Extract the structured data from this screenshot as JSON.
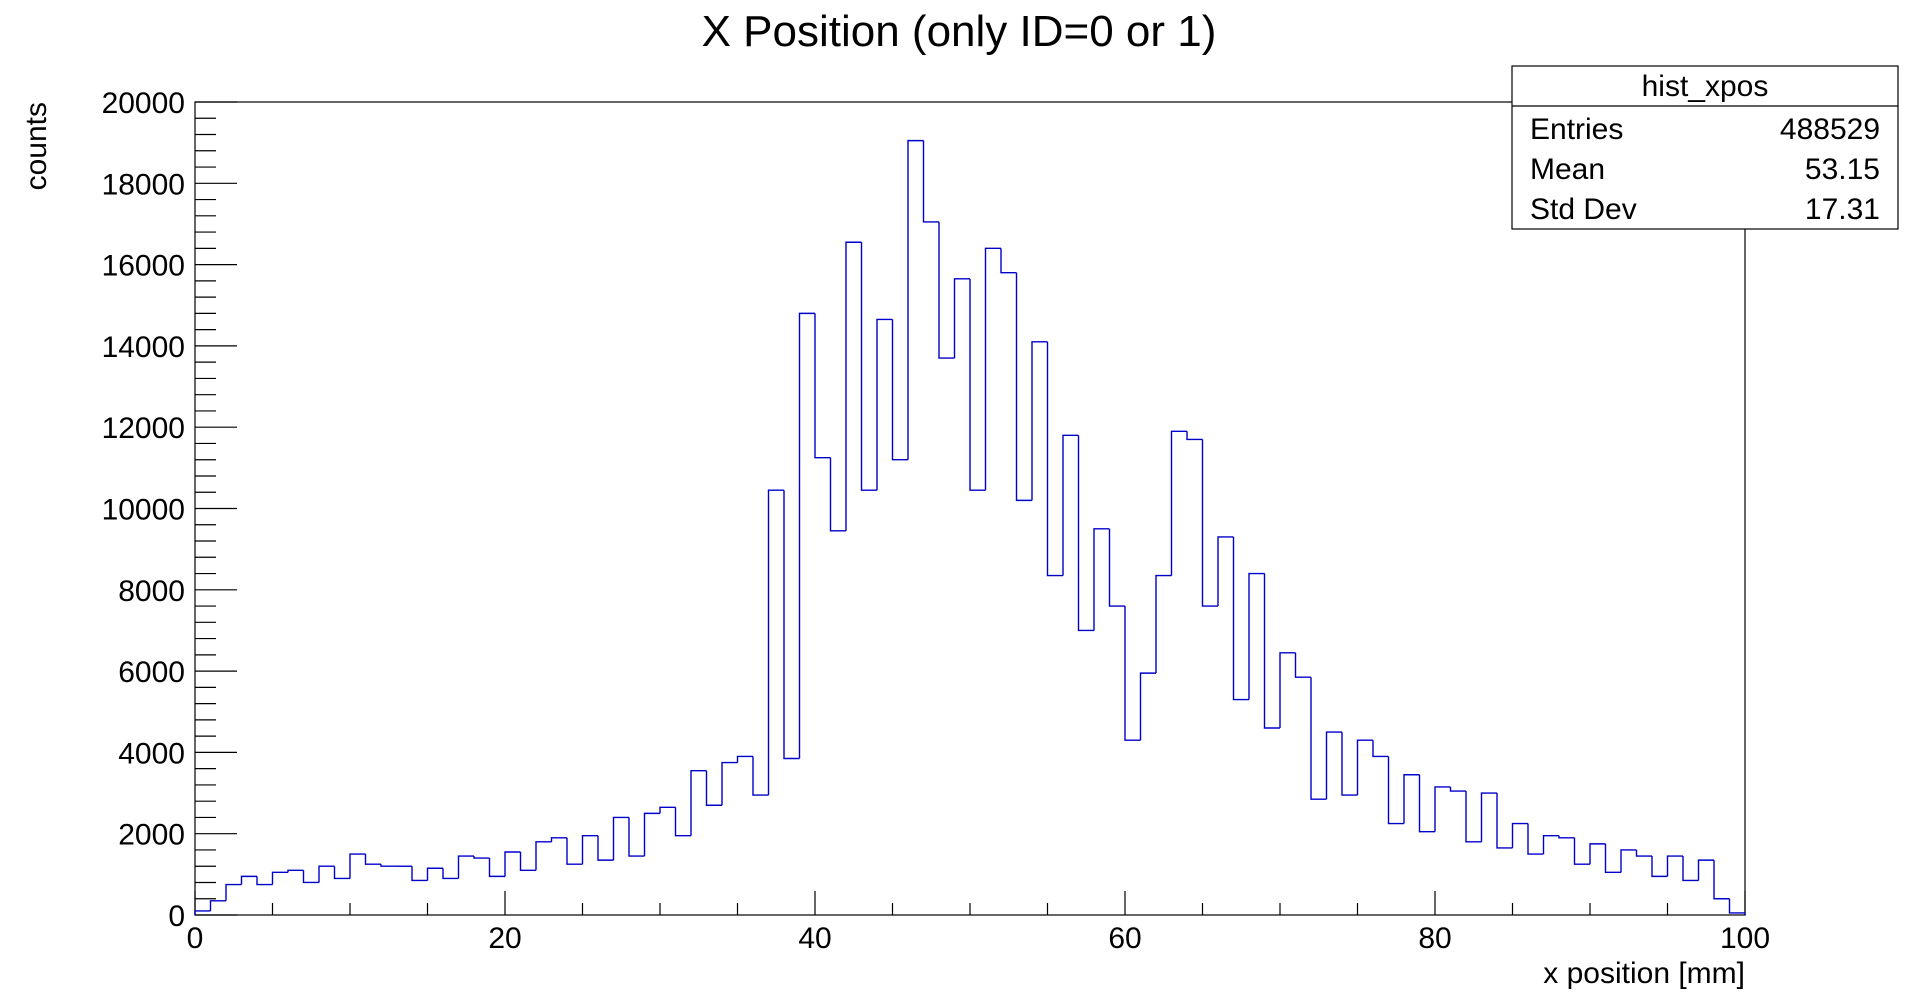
{
  "chart_data": {
    "type": "bar",
    "histogram": true,
    "title": "X Position (only ID=0 or 1)",
    "xlabel": "x position [mm]",
    "ylabel": "counts",
    "xlim": [
      0,
      100
    ],
    "ylim": [
      0,
      20000
    ],
    "x_ticks": [
      0,
      20,
      40,
      60,
      80,
      100
    ],
    "y_ticks": [
      0,
      2000,
      4000,
      6000,
      8000,
      10000,
      12000,
      14000,
      16000,
      18000,
      20000
    ],
    "grid": false,
    "bin_width": 1,
    "series": [
      {
        "color": "#0000cc",
        "values": [
          100,
          350,
          750,
          950,
          750,
          1050,
          1100,
          800,
          1200,
          900,
          1500,
          1250,
          1200,
          1200,
          850,
          1150,
          900,
          1450,
          1400,
          950,
          1550,
          1100,
          1800,
          1900,
          1250,
          1950,
          1350,
          2400,
          1450,
          2500,
          2650,
          1950,
          3550,
          2700,
          3750,
          3900,
          2950,
          10450,
          3850,
          14800,
          11250,
          9450,
          16550,
          10450,
          14650,
          11200,
          19050,
          17050,
          13700,
          15650,
          10450,
          16400,
          15800,
          10200,
          14100,
          8350,
          11800,
          7000,
          9500,
          7600,
          4300,
          5950,
          8350,
          11900,
          11700,
          7600,
          9300,
          5300,
          8400,
          4600,
          6450,
          5850,
          2850,
          4500,
          2950,
          4300,
          3900,
          2250,
          3450,
          2050,
          3150,
          3050,
          1800,
          3000,
          1650,
          2250,
          1500,
          1950,
          1900,
          1250,
          1750,
          1050,
          1600,
          1450,
          950,
          1450,
          850,
          1350,
          400,
          50
        ]
      }
    ]
  },
  "stats_box": {
    "name": "hist_xpos",
    "rows": [
      {
        "label": "Entries",
        "value": "488529"
      },
      {
        "label": "Mean",
        "value": "53.15"
      },
      {
        "label": "Std Dev",
        "value": "17.31"
      }
    ]
  }
}
